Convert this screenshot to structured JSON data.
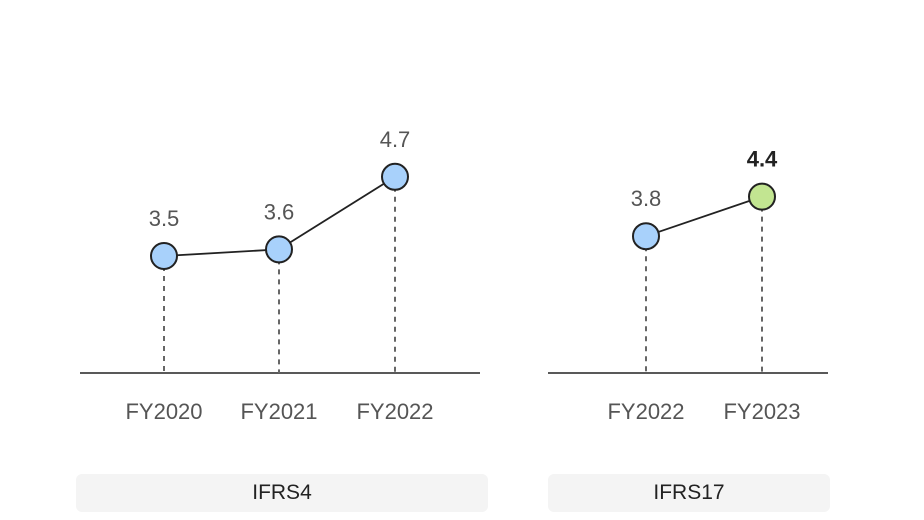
{
  "chart_data": [
    {
      "type": "line",
      "panel_label": "IFRS4",
      "categories": [
        "FY2020",
        "FY2021",
        "FY2022"
      ],
      "values": [
        3.5,
        3.6,
        4.7
      ],
      "value_labels": [
        "3.5",
        "3.6",
        "4.7"
      ],
      "highlight_index": null,
      "ylim": [
        2.5,
        5
      ],
      "grid": false,
      "point_color": "#a8d1fb"
    },
    {
      "type": "line",
      "panel_label": "IFRS17",
      "categories": [
        "FY2022",
        "FY2023"
      ],
      "values": [
        3.8,
        4.4
      ],
      "value_labels": [
        "3.8",
        "4.4"
      ],
      "highlight_index": 1,
      "ylim": [
        2.5,
        5
      ],
      "grid": false,
      "point_color": "#a8d1fb",
      "highlight_color": "#c2e591"
    }
  ]
}
